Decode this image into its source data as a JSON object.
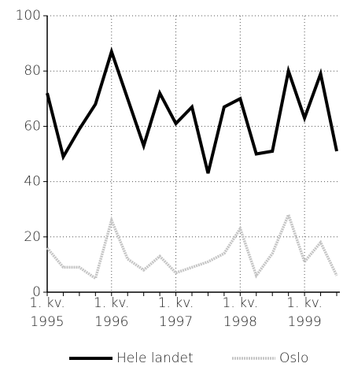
{
  "chart_data": {
    "type": "line",
    "categories": [
      "1. kv.\n1995",
      null,
      null,
      null,
      "1. kv.\n1996",
      null,
      null,
      null,
      "1. kv.\n1997",
      null,
      null,
      null,
      "1. kv.\n1998",
      null,
      null,
      null,
      "1. kv.\n1999",
      null,
      null
    ],
    "series": [
      {
        "name": "Hele landet",
        "color": "#000000",
        "values": [
          72,
          49,
          59,
          68,
          87,
          70,
          53,
          72,
          61,
          67,
          43,
          67,
          70,
          50,
          51,
          80,
          63,
          79,
          51
        ]
      },
      {
        "name": "Oslo",
        "color": "#c4c4c4",
        "values": [
          16,
          9,
          9,
          5,
          26,
          12,
          8,
          13,
          7,
          9,
          11,
          14,
          23,
          6,
          14,
          28,
          11,
          18,
          6
        ]
      }
    ],
    "ylim": [
      0,
      100
    ],
    "yticks": [
      0,
      20,
      40,
      60,
      80,
      100
    ],
    "grid": true,
    "legend": "bottom"
  }
}
